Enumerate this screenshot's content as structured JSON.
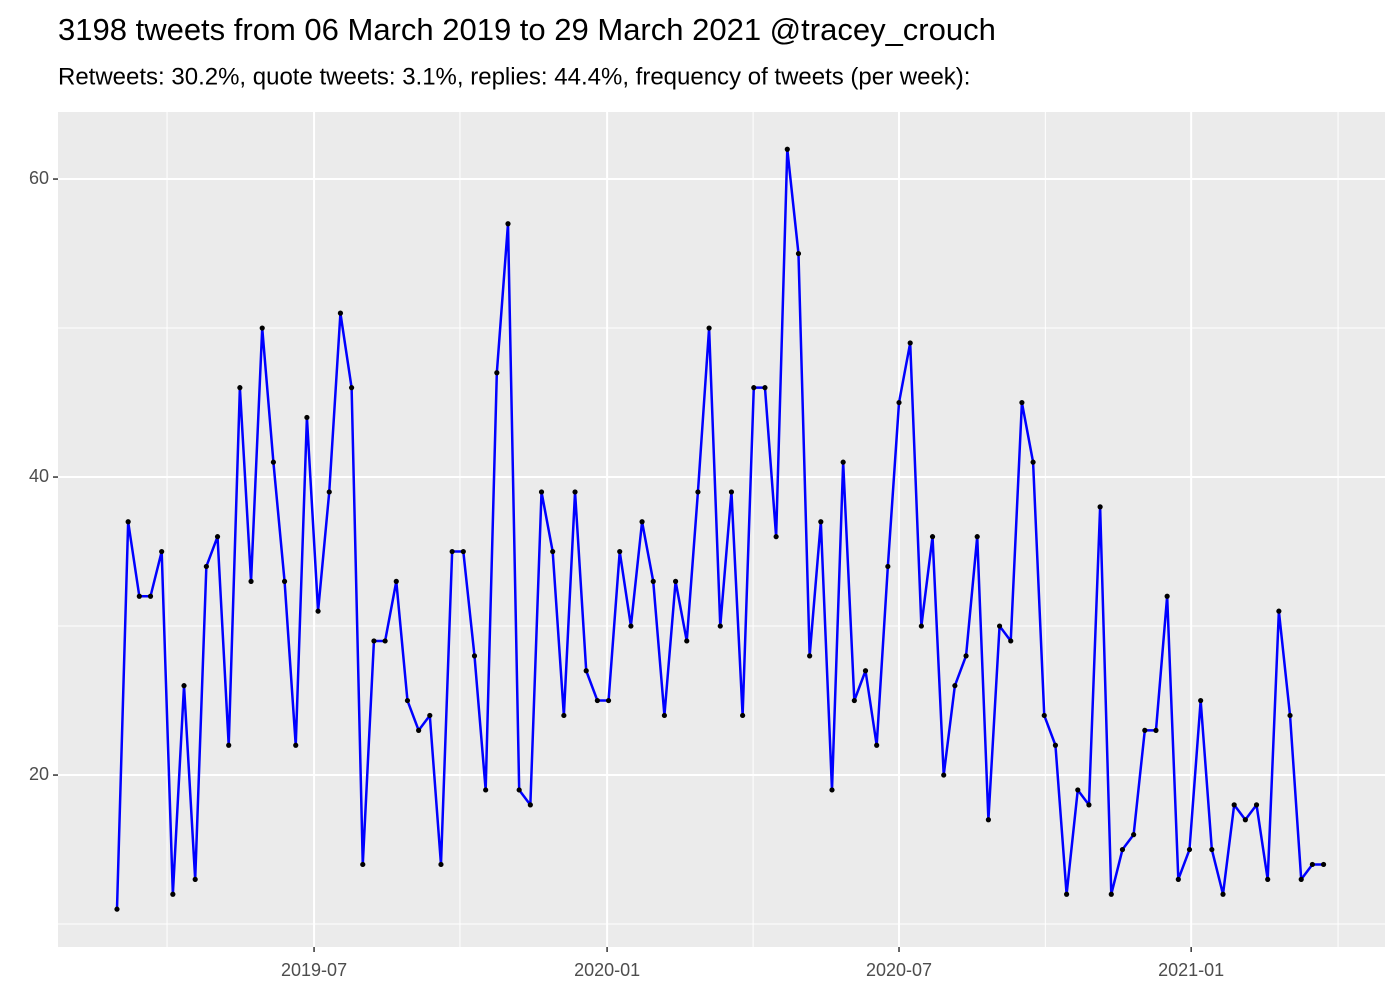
{
  "chart_data": {
    "type": "line",
    "title": "3198 tweets from 06 March 2019 to 29 March 2021 @tracey_crouch",
    "subtitle": "Retweets: 30.2%, quote tweets: 3.1%, replies: 44.4%, frequency of tweets (per week):",
    "values": [
      11,
      37,
      32,
      32,
      35,
      12,
      26,
      13,
      34,
      36,
      22,
      46,
      33,
      50,
      41,
      33,
      22,
      44,
      31,
      39,
      51,
      46,
      14,
      29,
      29,
      33,
      25,
      23,
      24,
      14,
      35,
      35,
      28,
      19,
      47,
      57,
      19,
      18,
      39,
      35,
      24,
      39,
      27,
      25,
      25,
      35,
      30,
      37,
      33,
      24,
      33,
      29,
      39,
      50,
      30,
      39,
      24,
      46,
      46,
      36,
      62,
      55,
      28,
      37,
      19,
      41,
      25,
      27,
      22,
      34,
      45,
      49,
      30,
      36,
      20,
      26,
      28,
      36,
      17,
      30,
      29,
      45,
      41,
      24,
      22,
      12,
      19,
      18,
      38,
      12,
      15,
      16,
      23,
      23,
      32,
      13,
      15,
      25,
      15,
      12,
      18,
      17,
      18,
      13,
      31,
      24,
      13,
      14,
      14
    ],
    "color": "#0000ff",
    "point_color": "#000000",
    "xlim": [
      -5.28,
      113.5
    ],
    "xticks": [
      {
        "value": 17.64,
        "label": "2019-07"
      },
      {
        "value": 43.87,
        "label": "2020-01"
      },
      {
        "value": 70.0,
        "label": "2020-07"
      },
      {
        "value": 96.15,
        "label": "2021-01"
      }
    ],
    "x_minor_gridlines": [
      4.48,
      30.7,
      56.94,
      83.1,
      109.3
    ],
    "ylim": [
      8.46,
      64.5
    ],
    "yticks": [
      20,
      40,
      60
    ],
    "y_minor_gridlines": [
      10,
      30,
      50
    ],
    "grid": true
  }
}
